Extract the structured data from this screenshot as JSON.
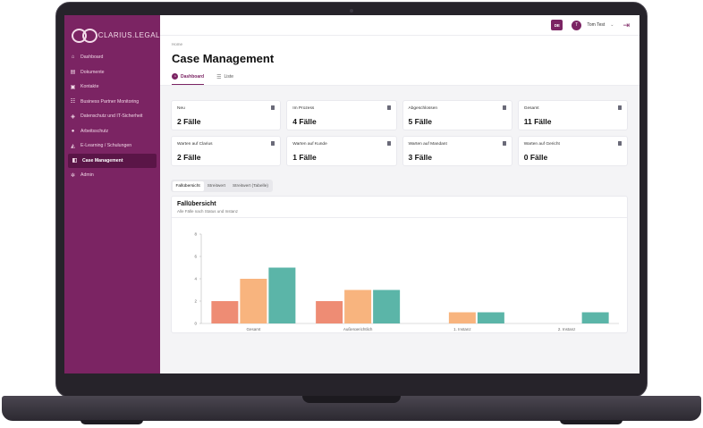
{
  "brand": {
    "logo_text": "CLARIUS.LEGAL"
  },
  "sidebar": {
    "items": [
      {
        "label": "Dashboard",
        "icon": "home-icon"
      },
      {
        "label": "Dokumente",
        "icon": "document-icon"
      },
      {
        "label": "Kontakte",
        "icon": "contact-icon"
      },
      {
        "label": "Business Partner Monitoring",
        "icon": "monitoring-icon"
      },
      {
        "label": "Datenschutz und IT-Sicherheit",
        "icon": "shield-icon"
      },
      {
        "label": "Arbeitsschutz",
        "icon": "user-icon"
      },
      {
        "label": "E-Learning / Schulungen",
        "icon": "graduation-cap-icon"
      },
      {
        "label": "Case Management",
        "icon": "case-icon"
      },
      {
        "label": "Admin",
        "icon": "admin-icon"
      }
    ],
    "active": "Case Management"
  },
  "topbar": {
    "lang": "DE",
    "avatar_initial": "T",
    "user_name": "Tom Test"
  },
  "header": {
    "breadcrumb": "Home",
    "title": "Case Management",
    "tabs": [
      {
        "label": "Dashboard"
      },
      {
        "label": "Liste"
      }
    ]
  },
  "cards": [
    {
      "label": "Neu",
      "value": "2 Fälle"
    },
    {
      "label": "Im Prozess",
      "value": "4 Fälle"
    },
    {
      "label": "Abgeschlossen",
      "value": "5 Fälle"
    },
    {
      "label": "Gesamt",
      "value": "11 Fälle"
    },
    {
      "label": "Warten auf Clarius",
      "value": "2 Fälle"
    },
    {
      "label": "Warten auf Kunde",
      "value": "1 Fälle"
    },
    {
      "label": "Warten auf Mandant",
      "value": "3 Fälle"
    },
    {
      "label": "Warten auf Gericht",
      "value": "0 Fälle"
    }
  ],
  "segmented": {
    "options": [
      "Fallübersicht",
      "Streitwert",
      "Streitwert (Tabelle)"
    ],
    "selected": "Fallübersicht"
  },
  "panel": {
    "title": "Fallübersicht",
    "subtitle": "Alle Fälle nach Status und Instanz"
  },
  "colors": {
    "brand": "#7b2463",
    "series1": "#ee8c74",
    "series2": "#f8b47e",
    "series3": "#5bb5a8"
  },
  "chart_data": {
    "type": "bar",
    "categories": [
      "Gesamt",
      "Außergerichtlich",
      "1. Instanz",
      "2. Instanz"
    ],
    "series": [
      {
        "values": [
          2,
          2,
          0,
          0
        ]
      },
      {
        "values": [
          4,
          3,
          1,
          0
        ]
      },
      {
        "values": [
          5,
          3,
          1,
          1
        ]
      }
    ],
    "yticks": [
      "0",
      "2",
      "4",
      "6",
      "8"
    ],
    "ylim": [
      0,
      8
    ],
    "xlabel": "",
    "ylabel": "",
    "grid": false
  }
}
